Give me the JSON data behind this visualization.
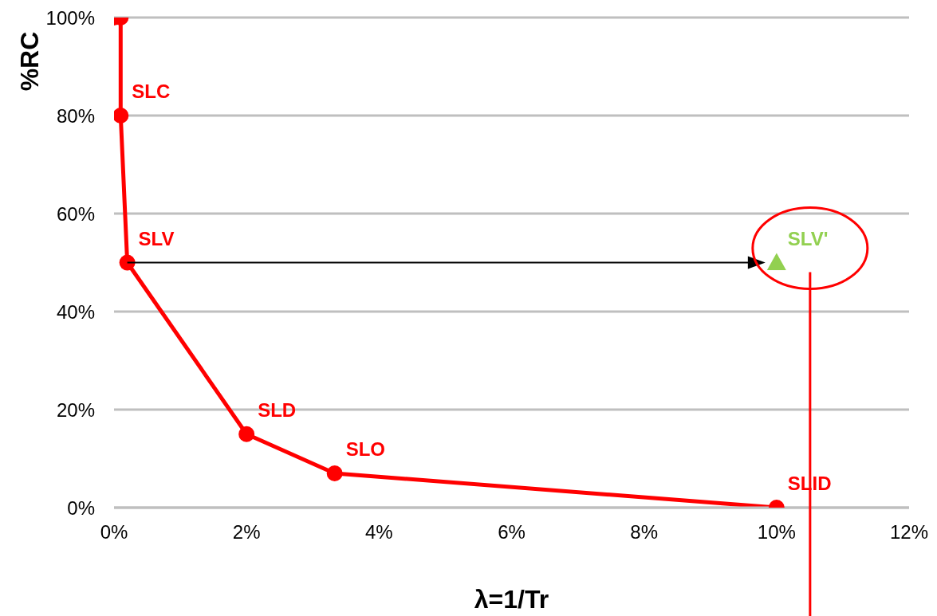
{
  "chart_data": {
    "type": "line",
    "xlabel": "λ=1/Tr",
    "ylabel": "%RC",
    "xlim": [
      0,
      12
    ],
    "xticks": [
      {
        "value": 0,
        "label": "0%"
      },
      {
        "value": 2,
        "label": "2%"
      },
      {
        "value": 4,
        "label": "4%"
      },
      {
        "value": 6,
        "label": "6%"
      },
      {
        "value": 8,
        "label": "8%"
      },
      {
        "value": 10,
        "label": "10%"
      },
      {
        "value": 12,
        "label": "12%"
      }
    ],
    "ylim": [
      0,
      100
    ],
    "yticks": [
      {
        "value": 0,
        "label": "0%"
      },
      {
        "value": 20,
        "label": "20%"
      },
      {
        "value": 40,
        "label": "40%"
      },
      {
        "value": 60,
        "label": "60%"
      },
      {
        "value": 80,
        "label": "80%"
      },
      {
        "value": 100,
        "label": "100%"
      }
    ],
    "grid": "y",
    "line_style": "solid",
    "series": [
      {
        "marker": "circle",
        "color": "#ff0000",
        "x": [
          0,
          0.1,
          0.1,
          0.2,
          2,
          3.33,
          10
        ],
        "values": [
          100,
          100,
          80,
          50,
          15,
          7,
          0
        ]
      },
      {
        "type": "scatter",
        "marker": "triangle",
        "color": "#92d050",
        "x": [
          10
        ],
        "values": [
          50
        ]
      }
    ],
    "annotations": [
      {
        "text": "SLC",
        "x": 0.1,
        "y": 80
      },
      {
        "text": "SLV",
        "x": 0.2,
        "y": 50
      },
      {
        "text": "SLD",
        "x": 2,
        "y": 15
      },
      {
        "text": "SLO",
        "x": 3.33,
        "y": 7
      },
      {
        "text": "SLID",
        "x": 10,
        "y": 0
      },
      {
        "text": "SLV'",
        "x": 10,
        "y": 50
      }
    ]
  }
}
